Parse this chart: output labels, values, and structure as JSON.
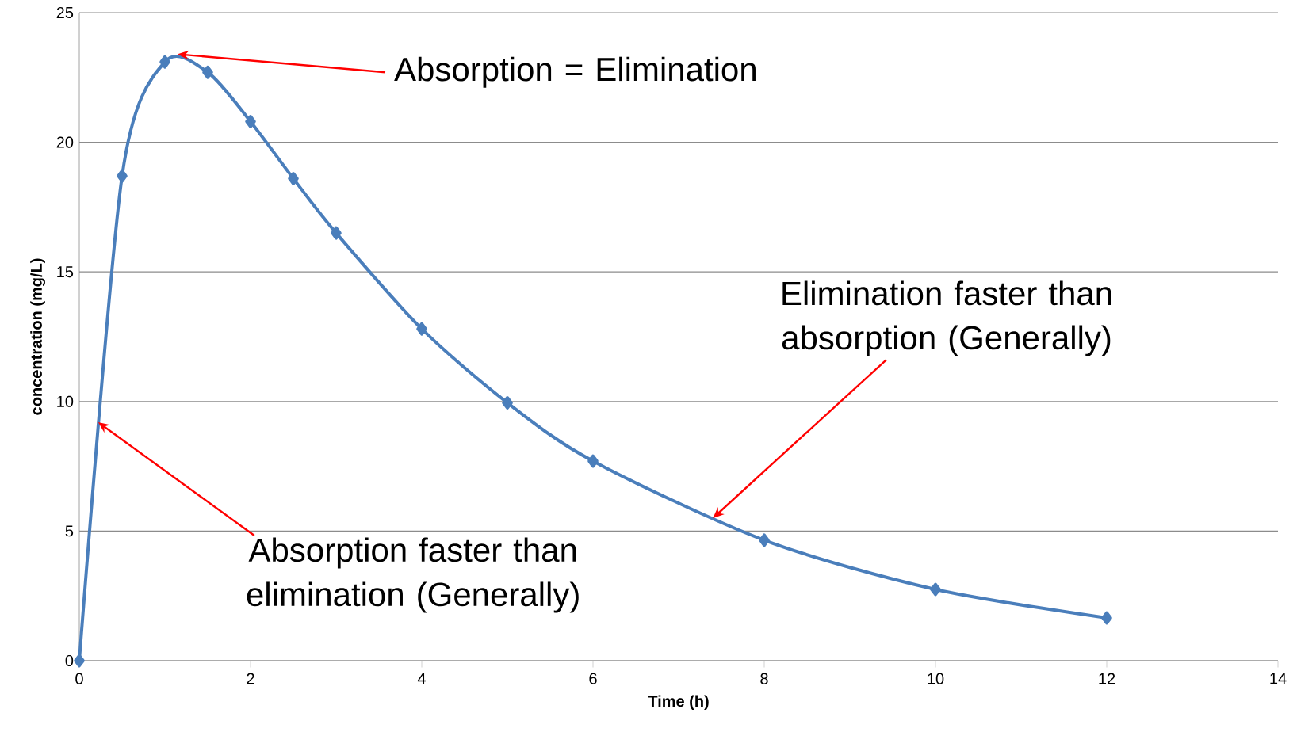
{
  "chart_data": {
    "type": "line",
    "xlabel": "Time (h)",
    "ylabel": "concentration (mg/L)",
    "x": [
      0,
      0.5,
      1,
      1.5,
      2,
      2.5,
      3,
      4,
      5,
      6,
      8,
      10,
      12
    ],
    "series": [
      {
        "color": "#4a7ebb",
        "values": [
          0,
          18.7,
          23.1,
          22.7,
          20.8,
          18.6,
          16.5,
          12.8,
          9.95,
          7.7,
          4.65,
          2.75,
          1.65
        ]
      }
    ],
    "xlim": [
      0,
      14
    ],
    "ylim": [
      0,
      25
    ],
    "xticks": [
      0,
      2,
      4,
      6,
      8,
      10,
      12,
      14
    ],
    "yticks": [
      0,
      5,
      10,
      15,
      20,
      25
    ],
    "grid": "y",
    "marker": "diamond",
    "line_style": "solid",
    "annotations": [
      {
        "text": "Absorption = Elimination",
        "x": 1.15,
        "y": 23.4
      },
      {
        "text": "Absorption faster than elimination (Generally)",
        "x": 0.22,
        "y": 9.2
      },
      {
        "text": "Elimination faster than absorption (Generally)",
        "x": 7.4,
        "y": 5.5
      }
    ]
  }
}
